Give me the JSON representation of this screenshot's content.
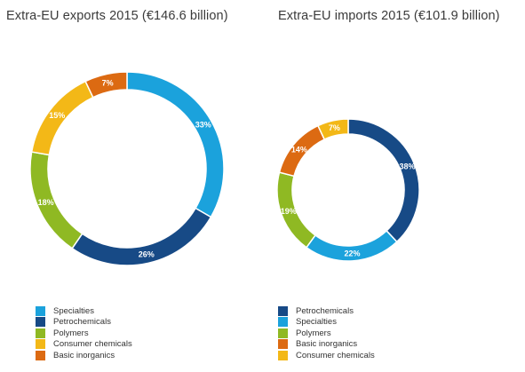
{
  "colors": {
    "specialties": "#1ba2dc",
    "petrochemicals": "#174a86",
    "polymers": "#8fb923",
    "consumer_chemicals": "#f3b817",
    "basic_inorganics": "#dc6a12"
  },
  "chart_data": [
    {
      "type": "pie",
      "donut": true,
      "title": "Extra-EU exports 2015 (€146.6 billion)",
      "start_angle_deg": 0,
      "slices": [
        {
          "name": "Specialties",
          "value": 33,
          "label": "33%",
          "color": "#1ba2dc"
        },
        {
          "name": "Petrochemicals",
          "value": 26,
          "label": "26%",
          "color": "#174a86"
        },
        {
          "name": "Polymers",
          "value": 18,
          "label": "18%",
          "color": "#8fb923"
        },
        {
          "name": "Consumer chemicals",
          "value": 15,
          "label": "15%",
          "color": "#f3b817"
        },
        {
          "name": "Basic inorganics",
          "value": 7,
          "label": "7%",
          "color": "#dc6a12"
        }
      ],
      "legend": [
        {
          "label": "Specialties",
          "color": "#1ba2dc"
        },
        {
          "label": "Petrochemicals",
          "color": "#174a86"
        },
        {
          "label": "Polymers",
          "color": "#8fb923"
        },
        {
          "label": "Consumer chemicals",
          "color": "#f3b817"
        },
        {
          "label": "Basic inorganics",
          "color": "#dc6a12"
        }
      ]
    },
    {
      "type": "pie",
      "donut": true,
      "title": "Extra-EU imports 2015 (€101.9 billion)",
      "start_angle_deg": 0,
      "slices": [
        {
          "name": "Petrochemicals",
          "value": 38,
          "label": "38%",
          "color": "#174a86"
        },
        {
          "name": "Specialties",
          "value": 22,
          "label": "22%",
          "color": "#1ba2dc"
        },
        {
          "name": "Polymers",
          "value": 19,
          "label": "19%",
          "color": "#8fb923"
        },
        {
          "name": "Basic inorganics",
          "value": 14,
          "label": "14%",
          "color": "#dc6a12"
        },
        {
          "name": "Consumer chemicals",
          "value": 7,
          "label": "7%",
          "color": "#f3b817"
        }
      ],
      "legend": [
        {
          "label": "Petrochemicals",
          "color": "#174a86"
        },
        {
          "label": "Specialties",
          "color": "#1ba2dc"
        },
        {
          "label": "Polymers",
          "color": "#8fb923"
        },
        {
          "label": "Basic inorganics",
          "color": "#dc6a12"
        },
        {
          "label": "Consumer chemicals",
          "color": "#f3b817"
        }
      ]
    }
  ]
}
